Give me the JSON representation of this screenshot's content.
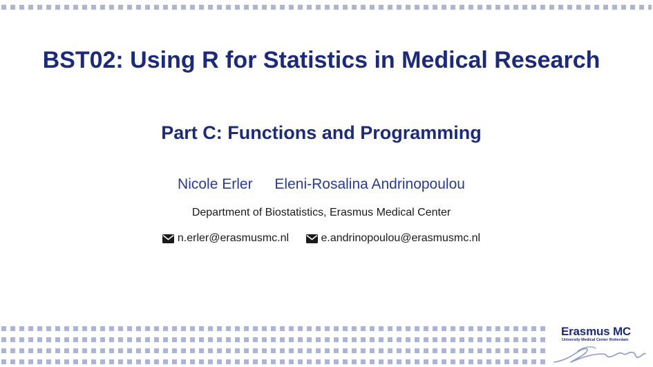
{
  "slide": {
    "title": "BST02: Using R for Statistics in Medical Research",
    "subtitle": "Part C: Functions and Programming",
    "authors": [
      "Nicole Erler",
      "Eleni-Rosalina Andrinopoulou"
    ],
    "department": "Department of Biostatistics, Erasmus Medical Center",
    "emails": [
      "n.erler@erasmusmc.nl",
      "e.andrinopoulou@erasmusmc.nl"
    ]
  },
  "logo": {
    "name": "Erasmus MC",
    "subtitle": "University Medical Center Rotterdam"
  },
  "colors": {
    "title": "#1c2a7a",
    "authors": "#2a3b8f",
    "pattern": "#aeb4d8",
    "text": "#1a1a1a"
  },
  "icons": {
    "email": "envelope-icon"
  }
}
